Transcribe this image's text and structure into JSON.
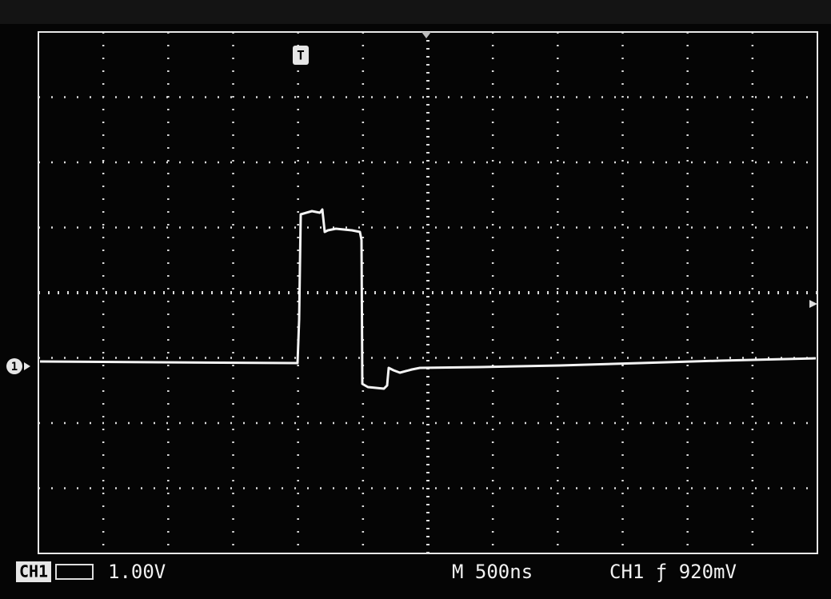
{
  "status_bar": {
    "channel": "CH1",
    "scale": "1.00V",
    "timebase": "M 500ns",
    "trigger": "CH1 ƒ 920mV"
  },
  "markers": {
    "trigger": "T",
    "channel": "1"
  }
}
